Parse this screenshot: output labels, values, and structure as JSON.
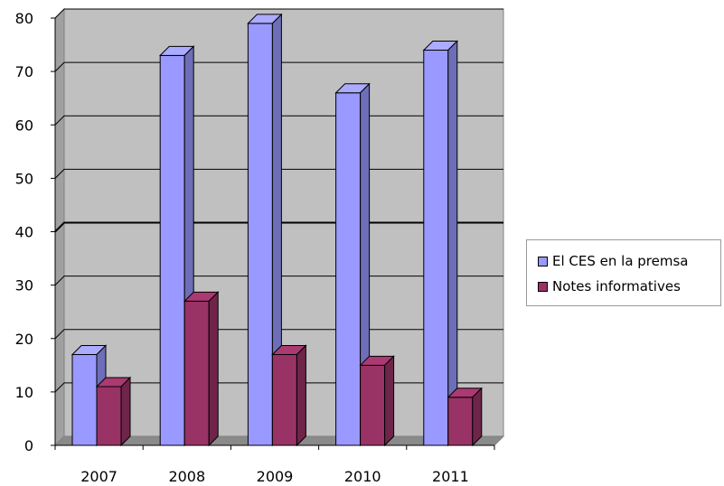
{
  "chart_data": {
    "type": "bar",
    "categories": [
      "2007",
      "2008",
      "2009",
      "2010",
      "2011"
    ],
    "series": [
      {
        "name": "El CES en la premsa",
        "values": [
          17,
          73,
          79,
          66,
          74
        ],
        "color": "#9999ff"
      },
      {
        "name": "Notes informatives",
        "values": [
          11,
          27,
          17,
          15,
          9
        ],
        "color": "#993366"
      }
    ],
    "yticks": [
      "0",
      "10",
      "20",
      "30",
      "40",
      "50",
      "60",
      "70",
      "80"
    ],
    "ylim": [
      0,
      80
    ],
    "grid": true,
    "legend_position": "right",
    "style": "3d-clustered-column",
    "plot_background": "#c0c0c0"
  }
}
